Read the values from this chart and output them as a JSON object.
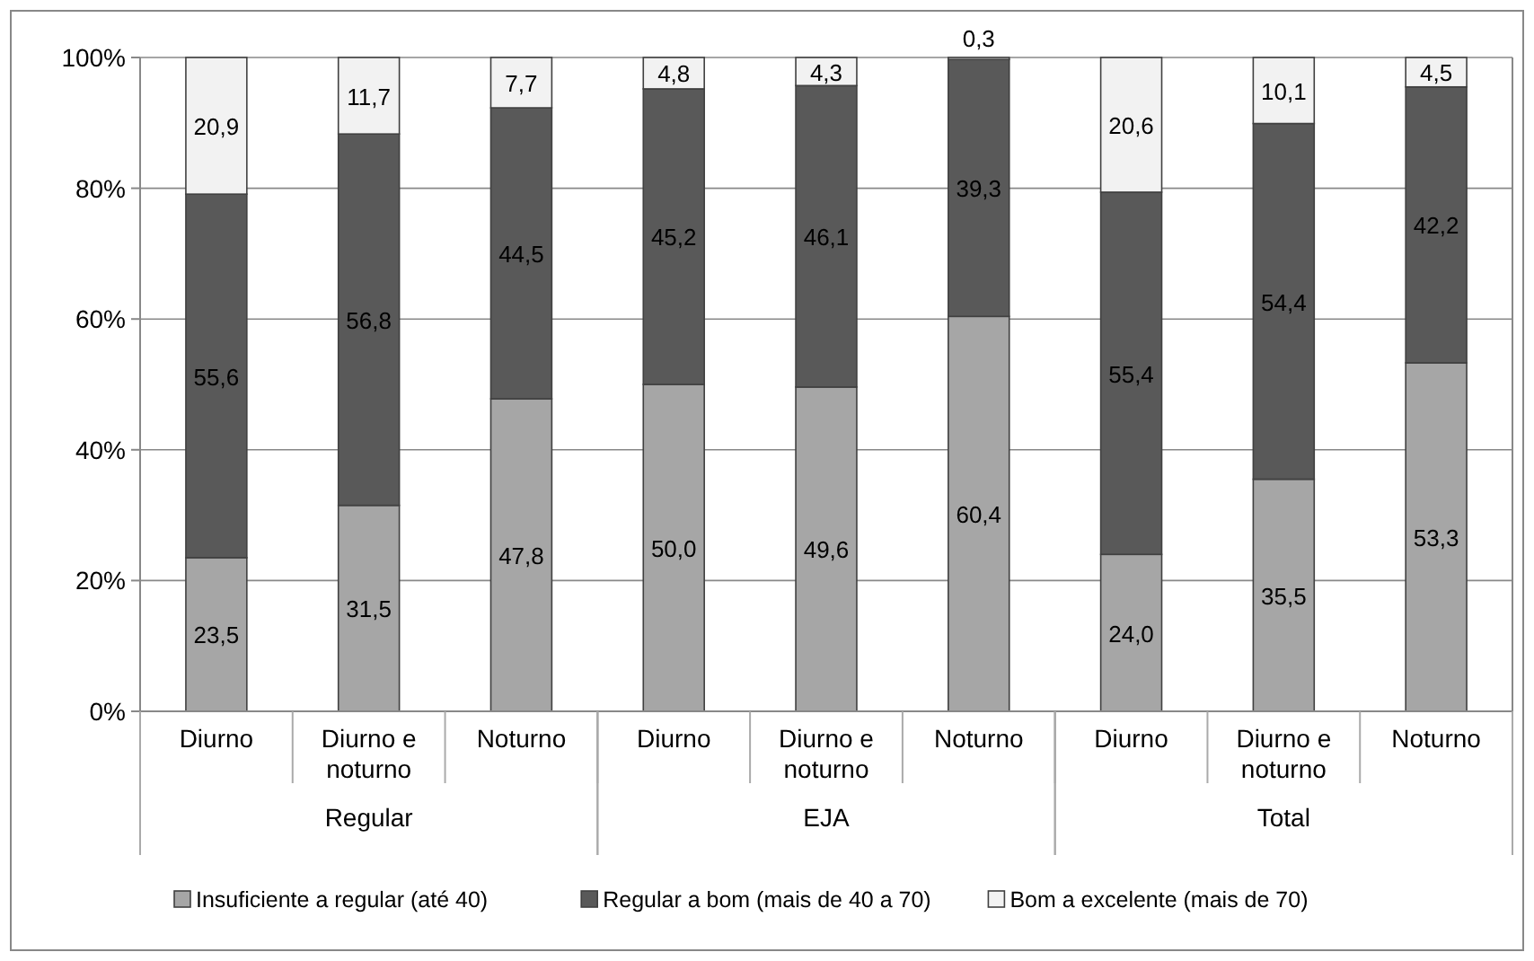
{
  "chart_data": {
    "type": "bar",
    "stacked": true,
    "categories": [
      "Diurno",
      "Diurno e noturno",
      "Noturno",
      "Diurno",
      "Diurno e noturno",
      "Noturno",
      "Diurno",
      "Diurno e noturno",
      "Noturno"
    ],
    "series": [
      {
        "name": "Insuficiente a regular (até 40)",
        "color": "#a6a6a6",
        "values": [
          23.5,
          31.5,
          47.8,
          50.0,
          49.6,
          60.4,
          24.0,
          35.5,
          53.3
        ],
        "value_labels": [
          "23,5",
          "31,5",
          "47,8",
          "50,0",
          "49,6",
          "60,4",
          "24,0",
          "35,5",
          "53,3"
        ]
      },
      {
        "name": "Regular a bom (mais de 40 a 70)",
        "color": "#595959",
        "values": [
          55.6,
          56.8,
          44.5,
          45.2,
          46.1,
          39.3,
          55.4,
          54.4,
          42.2
        ],
        "value_labels": [
          "55,6",
          "56,8",
          "44,5",
          "45,2",
          "46,1",
          "39,3",
          "55,4",
          "54,4",
          "42,2"
        ]
      },
      {
        "name": "Bom a excelente (mais de 70)",
        "color": "#f2f2f2",
        "values": [
          20.9,
          11.7,
          7.7,
          4.8,
          4.3,
          0.3,
          20.6,
          10.1,
          4.5
        ],
        "value_labels": [
          "20,9",
          "11,7",
          "7,7",
          "4,8",
          "4,3",
          "0,3",
          "20,6",
          "10,1",
          "4,5"
        ]
      }
    ],
    "ylim": [
      0,
      100
    ],
    "yticks": [
      {
        "value": 0,
        "label": "0%"
      },
      {
        "value": 20,
        "label": "20%"
      },
      {
        "value": 40,
        "label": "40%"
      },
      {
        "value": 60,
        "label": "60%"
      },
      {
        "value": 80,
        "label": "80%"
      },
      {
        "value": 100,
        "label": "100%"
      }
    ],
    "grid": "y",
    "legend": "bottom",
    "annotations": [
      "Regular",
      "EJA",
      "Total"
    ]
  }
}
